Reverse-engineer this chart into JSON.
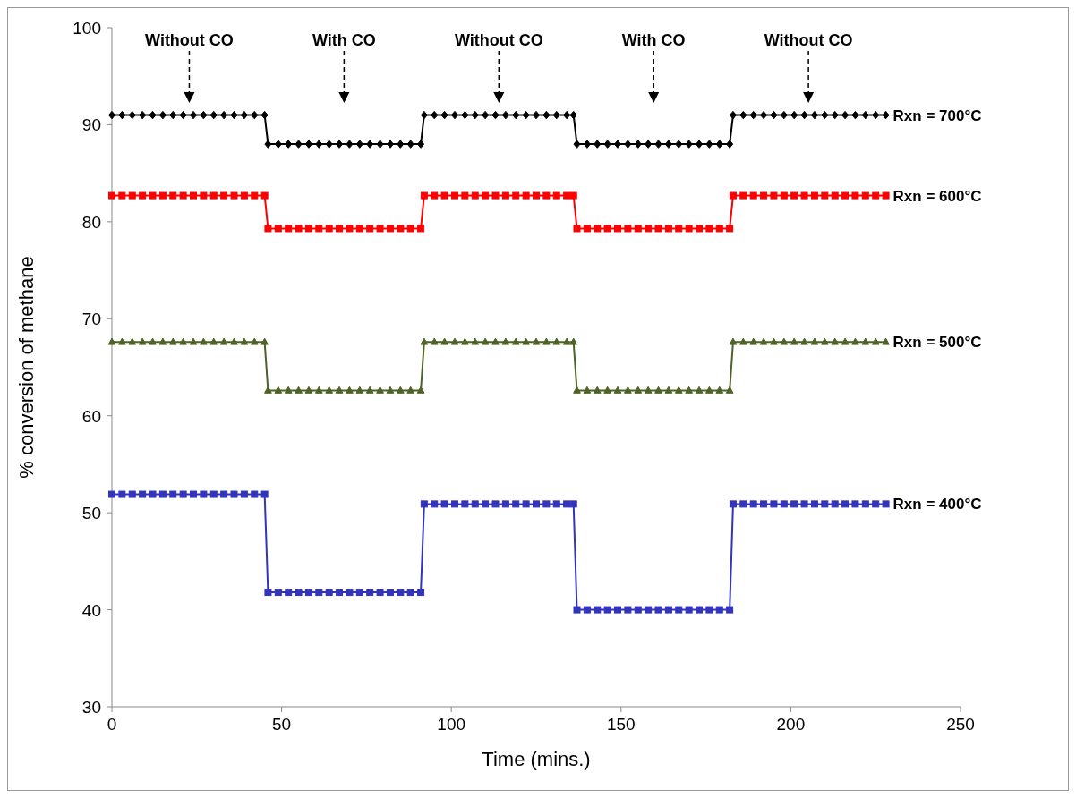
{
  "chart_data": {
    "type": "line",
    "xlabel": "Time (mins.)",
    "ylabel": "% conversion of methane",
    "x": [
      0,
      3,
      6,
      9,
      12,
      15,
      18,
      21,
      24,
      27,
      30,
      33,
      36,
      39,
      42,
      45,
      46,
      49,
      52,
      55,
      58,
      61,
      64,
      67,
      70,
      73,
      76,
      79,
      82,
      85,
      88,
      91,
      92,
      95,
      98,
      101,
      104,
      107,
      110,
      113,
      116,
      119,
      122,
      125,
      128,
      131,
      134,
      136,
      137,
      140,
      143,
      146,
      149,
      152,
      155,
      158,
      161,
      164,
      167,
      170,
      173,
      176,
      179,
      182,
      183,
      186,
      189,
      192,
      195,
      198,
      201,
      204,
      207,
      210,
      213,
      216,
      219,
      222,
      225,
      228
    ],
    "series": [
      {
        "name": "Rxn = 700°C",
        "color": "#000000",
        "marker": "diamond",
        "values": [
          91,
          91,
          91,
          91,
          91,
          91,
          91,
          91,
          91,
          91,
          91,
          91,
          91,
          91,
          91,
          91,
          88,
          88,
          88,
          88,
          88,
          88,
          88,
          88,
          88,
          88,
          88,
          88,
          88,
          88,
          88,
          88,
          91,
          91,
          91,
          91,
          91,
          91,
          91,
          91,
          91,
          91,
          91,
          91,
          91,
          91,
          91,
          91,
          88,
          88,
          88,
          88,
          88,
          88,
          88,
          88,
          88,
          88,
          88,
          88,
          88,
          88,
          88,
          88,
          91,
          91,
          91,
          91,
          91,
          91,
          91,
          91,
          91,
          91,
          91,
          91,
          91,
          91,
          91,
          91
        ]
      },
      {
        "name": "Rxn = 600°C",
        "color": "#ff0000",
        "marker": "square",
        "values": [
          82.7,
          82.7,
          82.7,
          82.7,
          82.7,
          82.7,
          82.7,
          82.7,
          82.7,
          82.7,
          82.7,
          82.7,
          82.7,
          82.7,
          82.7,
          82.7,
          79.3,
          79.3,
          79.3,
          79.3,
          79.3,
          79.3,
          79.3,
          79.3,
          79.3,
          79.3,
          79.3,
          79.3,
          79.3,
          79.3,
          79.3,
          79.3,
          82.7,
          82.7,
          82.7,
          82.7,
          82.7,
          82.7,
          82.7,
          82.7,
          82.7,
          82.7,
          82.7,
          82.7,
          82.7,
          82.7,
          82.7,
          82.7,
          79.3,
          79.3,
          79.3,
          79.3,
          79.3,
          79.3,
          79.3,
          79.3,
          79.3,
          79.3,
          79.3,
          79.3,
          79.3,
          79.3,
          79.3,
          79.3,
          82.7,
          82.7,
          82.7,
          82.7,
          82.7,
          82.7,
          82.7,
          82.7,
          82.7,
          82.7,
          82.7,
          82.7,
          82.7,
          82.7,
          82.7,
          82.7
        ]
      },
      {
        "name": "Rxn = 500°C",
        "color": "#4f6228",
        "marker": "triangle",
        "values": [
          67.6,
          67.6,
          67.6,
          67.6,
          67.6,
          67.6,
          67.6,
          67.6,
          67.6,
          67.6,
          67.6,
          67.6,
          67.6,
          67.6,
          67.6,
          67.6,
          62.6,
          62.6,
          62.6,
          62.6,
          62.6,
          62.6,
          62.6,
          62.6,
          62.6,
          62.6,
          62.6,
          62.6,
          62.6,
          62.6,
          62.6,
          62.6,
          67.6,
          67.6,
          67.6,
          67.6,
          67.6,
          67.6,
          67.6,
          67.6,
          67.6,
          67.6,
          67.6,
          67.6,
          67.6,
          67.6,
          67.6,
          67.6,
          62.6,
          62.6,
          62.6,
          62.6,
          62.6,
          62.6,
          62.6,
          62.6,
          62.6,
          62.6,
          62.6,
          62.6,
          62.6,
          62.6,
          62.6,
          62.6,
          67.6,
          67.6,
          67.6,
          67.6,
          67.6,
          67.6,
          67.6,
          67.6,
          67.6,
          67.6,
          67.6,
          67.6,
          67.6,
          67.6,
          67.6,
          67.6
        ]
      },
      {
        "name": "Rxn = 400°C",
        "color": "#3333bb",
        "marker": "square",
        "values": [
          51.9,
          51.9,
          51.9,
          51.9,
          51.9,
          51.9,
          51.9,
          51.9,
          51.9,
          51.9,
          51.9,
          51.9,
          51.9,
          51.9,
          51.9,
          51.9,
          41.8,
          41.8,
          41.8,
          41.8,
          41.8,
          41.8,
          41.8,
          41.8,
          41.8,
          41.8,
          41.8,
          41.8,
          41.8,
          41.8,
          41.8,
          41.8,
          50.9,
          50.9,
          50.9,
          50.9,
          50.9,
          50.9,
          50.9,
          50.9,
          50.9,
          50.9,
          50.9,
          50.9,
          50.9,
          50.9,
          50.9,
          50.9,
          40,
          40,
          40,
          40,
          40,
          40,
          40,
          40,
          40,
          40,
          40,
          40,
          40,
          40,
          40,
          40,
          50.9,
          50.9,
          50.9,
          50.9,
          50.9,
          50.9,
          50.9,
          50.9,
          50.9,
          50.9,
          50.9,
          50.9,
          50.9,
          50.9,
          50.9,
          50.9
        ]
      }
    ],
    "annotations": [
      "Without CO",
      "With CO",
      "Without CO",
      "With CO",
      "Without CO"
    ],
    "xlim": [
      0,
      250
    ],
    "xticks": [
      0,
      50,
      100,
      150,
      200,
      250
    ],
    "ylim": [
      30,
      100
    ],
    "yticks": [
      30,
      40,
      50,
      60,
      70,
      80,
      90,
      100
    ],
    "grid": false,
    "line_style": "solid"
  }
}
